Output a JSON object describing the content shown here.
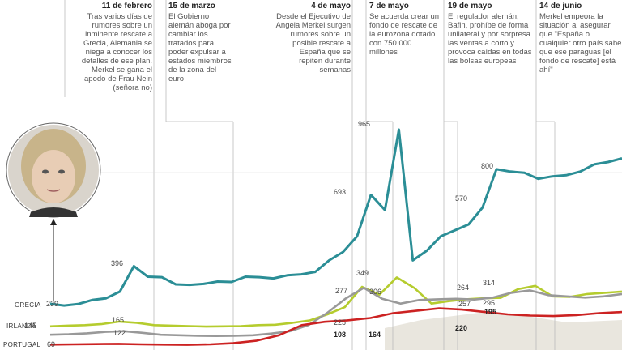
{
  "annotations": [
    {
      "date": "11 de febrero",
      "text": "Tras varios días de rumores sobre un inminente rescate a Grecia, Alemania se niega a conocer los detalles de ese plan. Merkel se gana el apodo de Frau Nein (señora no)"
    },
    {
      "date": "15 de marzo",
      "text": "El Gobierno alemán aboga por cambiar los tratados para poder expulsar a estados miembros de la zona del euro"
    },
    {
      "date": "4 de mayo",
      "text": "Desde el Ejecutivo de Angela Merkel surgen rumores sobre un posible rescate a España que se repiten durante semanas"
    },
    {
      "date": "7 de mayo",
      "text": "Se acuerda crear un fondo de rescate de la eurozona dotado con 750.000 millones"
    },
    {
      "date": "19 de mayo",
      "text": "El regulador alemán, Bafin, prohíbe de forma unilateral y por sorpresa las ventas a corto y provoca caídas en todas las bolsas europeas"
    },
    {
      "date": "14 de junio",
      "text": "Merkel empeora la situación al asegurar que \"España o cualquier otro país sabe que ese paraguas [el fondo de rescate] está ahí\""
    }
  ],
  "photo": {
    "icon": "portrait-icon"
  },
  "chart_data": {
    "type": "line",
    "series": [
      {
        "name": "GRECIA",
        "color": "#2b8e96",
        "values": [
          239,
          232,
          238,
          255,
          262,
          290,
          396,
          352,
          350,
          320,
          318,
          322,
          332,
          330,
          352,
          350,
          345,
          358,
          362,
          372,
          420,
          455,
          520,
          693,
          630,
          965,
          420,
          460,
          520,
          545,
          570,
          640,
          800,
          790,
          785,
          760,
          770,
          775,
          790,
          820,
          830,
          845
        ]
      },
      {
        "name": "IRLANDA",
        "color": "#b5cc2e",
        "values": [
          145,
          148,
          150,
          155,
          165,
          160,
          150,
          148,
          146,
          144,
          145,
          146,
          150,
          152,
          160,
          170,
          195,
          225,
          310,
          277,
          349,
          306,
          240,
          250,
          258,
          262,
          264,
          300,
          314,
          270,
          268,
          280,
          285,
          290
        ]
      },
      {
        "name": "PORTUGAL",
        "color": "#999999",
        "values": [
          110,
          112,
          116,
          122,
          125,
          118,
          110,
          108,
          106,
          105,
          106,
          108,
          115,
          125,
          150,
          200,
          260,
          306,
          260,
          240,
          255,
          258,
          260,
          257,
          265,
          285,
          295,
          275,
          270,
          265,
          270,
          280
        ]
      },
      {
        "name": "",
        "color": "#cc2222",
        "values": [
          69,
          70,
          71,
          72,
          70,
          69,
          68,
          70,
          75,
          85,
          108,
          150,
          164,
          170,
          180,
          200,
          210,
          220,
          215,
          205,
          195,
          190,
          188,
          192,
          200,
          205
        ]
      }
    ],
    "point_labels": [
      "239",
      "396",
      "693",
      "965",
      "570",
      "800",
      "145",
      "165",
      "122",
      "277",
      "349",
      "306",
      "264",
      "314",
      "225",
      "257",
      "295",
      "108",
      "164",
      "220",
      "195",
      "69"
    ],
    "series_labels": [
      "GRECIA",
      "IRLANDA",
      "PORTUGAL"
    ]
  }
}
